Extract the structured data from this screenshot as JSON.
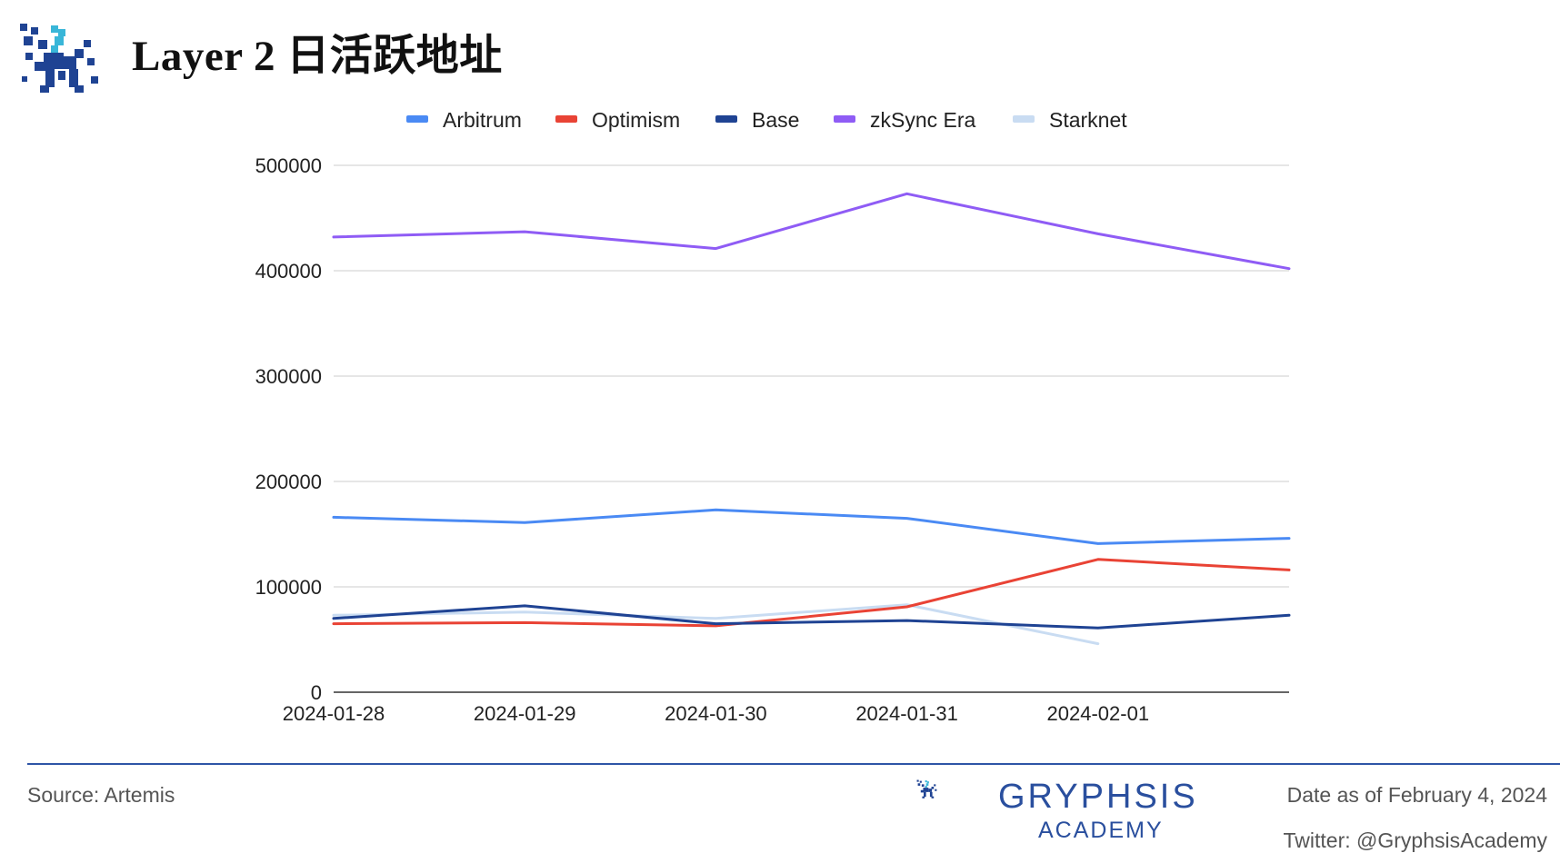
{
  "header": {
    "title": "Layer 2 日活跃地址"
  },
  "chart_data": {
    "type": "line",
    "title": "",
    "xlabel": "",
    "ylabel": "",
    "categories": [
      "2024-01-28",
      "2024-01-29",
      "2024-01-30",
      "2024-01-31",
      "2024-02-01",
      ""
    ],
    "ylim": [
      0,
      500000
    ],
    "yticks": [
      "500000",
      "400000",
      "300000",
      "200000",
      "100000",
      "0"
    ],
    "grid": true,
    "legend_position": "top",
    "series": [
      {
        "name": "Arbitrum",
        "color": "#4a8af4",
        "values": [
          166000,
          161000,
          173000,
          165000,
          141000,
          146000
        ]
      },
      {
        "name": "Optimism",
        "color": "#e94335",
        "values": [
          65000,
          66000,
          63000,
          81000,
          126000,
          116000
        ]
      },
      {
        "name": "Base",
        "color": "#1f4393",
        "values": [
          70000,
          82000,
          65000,
          68000,
          61000,
          73000
        ]
      },
      {
        "name": "zkSync Era",
        "color": "#8f5cf5",
        "values": [
          432000,
          437000,
          421000,
          473000,
          435000,
          402000
        ]
      },
      {
        "name": "Starknet",
        "color": "#c9dcf2",
        "values": [
          73000,
          76000,
          70000,
          83000,
          46000,
          null
        ]
      }
    ]
  },
  "footer": {
    "source": "Source: Artemis",
    "brand_name": "GRYPHSIS",
    "brand_sub": "ACADEMY",
    "date_note": "Date as of February 4, 2024",
    "twitter": "Twitter: @GryphsisAcademy"
  }
}
